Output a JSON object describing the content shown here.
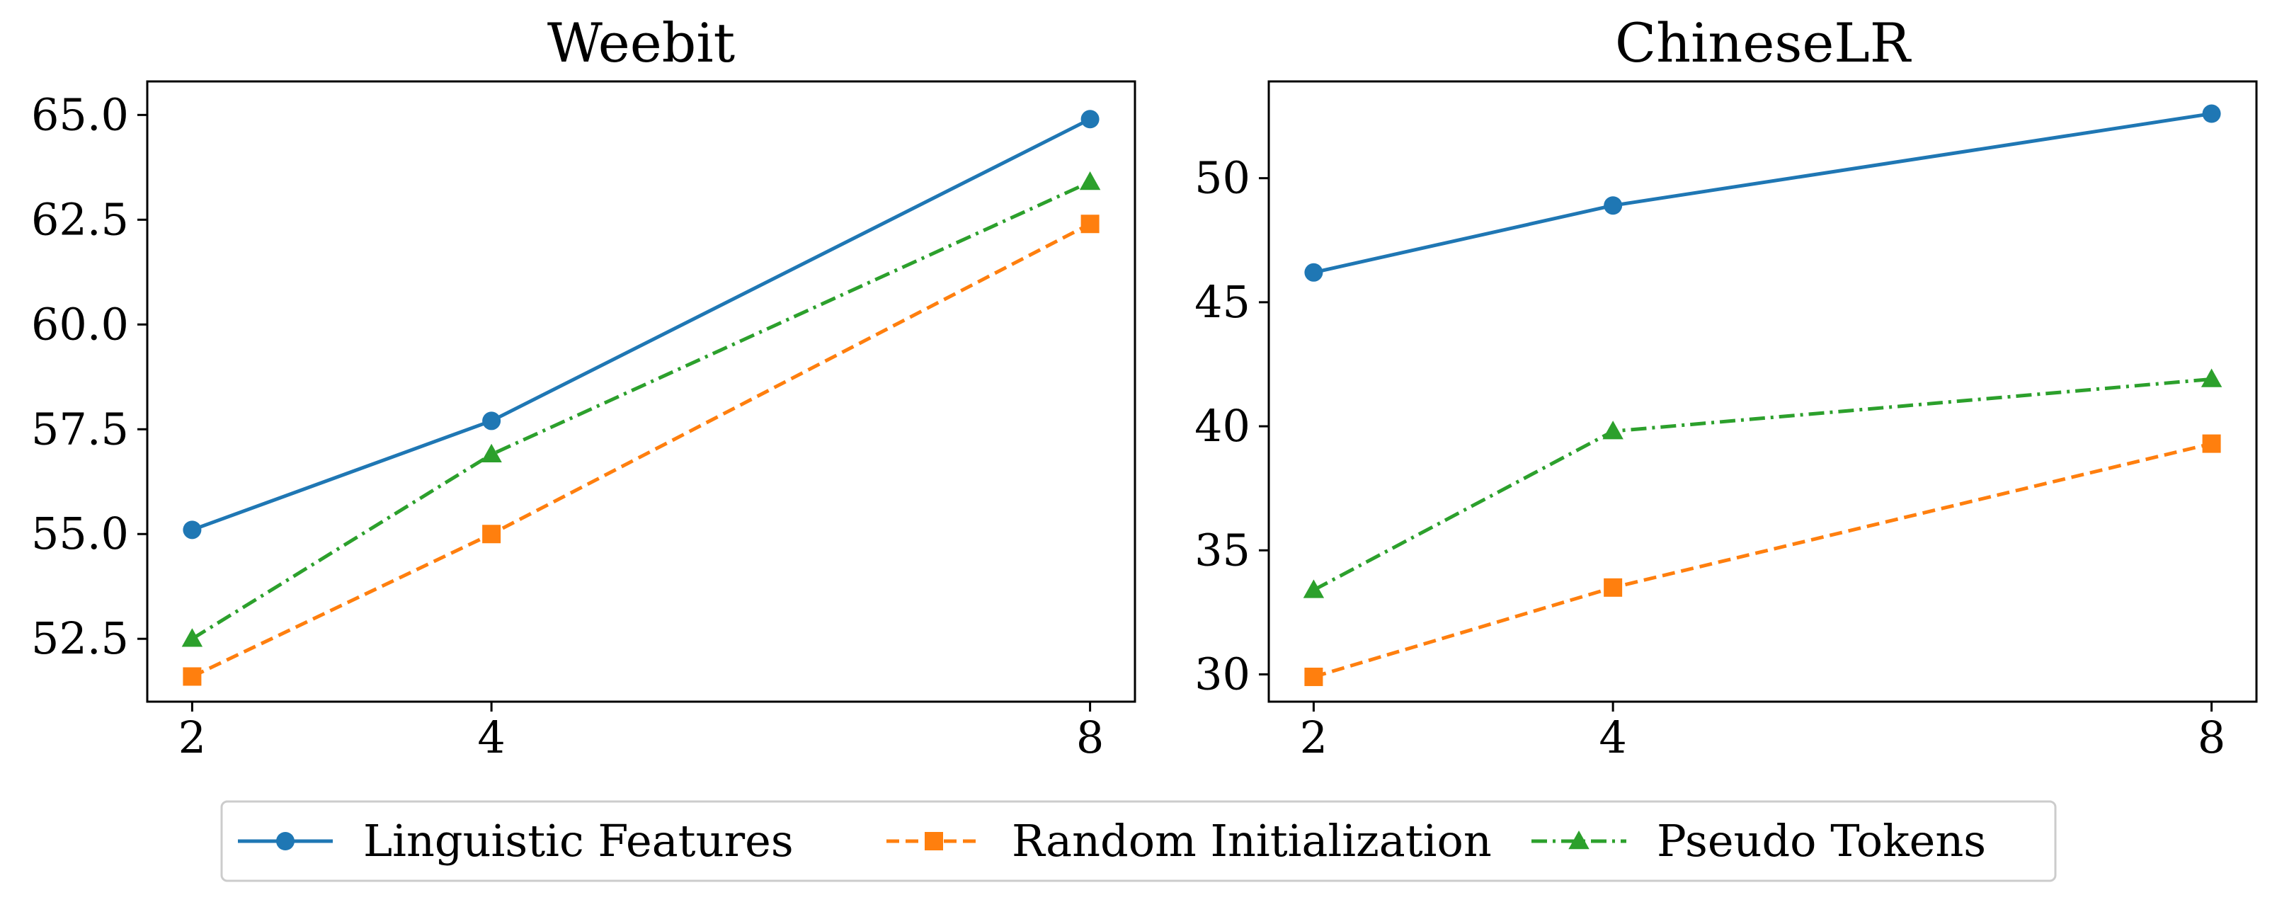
{
  "colors": {
    "linguistic": "#1f77b4",
    "random": "#ff7f0e",
    "pseudo": "#2ca02c",
    "axis": "#000000",
    "legend_border": "#cccccc"
  },
  "legend": {
    "placement": "bottom-center",
    "items": [
      {
        "label": "Linguistic Features",
        "marker": "circle",
        "line_style": "solid",
        "color_key": "linguistic"
      },
      {
        "label": "Random Initialization",
        "marker": "square",
        "line_style": "dashed",
        "color_key": "random"
      },
      {
        "label": "Pseudo Tokens",
        "marker": "triangle",
        "line_style": "dashdot",
        "color_key": "pseudo"
      }
    ]
  },
  "chart_data": [
    {
      "type": "line",
      "title": "Weebit",
      "xlabel": "",
      "ylabel": "",
      "x": [
        2,
        4,
        8
      ],
      "xlim": [
        1.7,
        8.3
      ],
      "ylim": [
        51.0,
        65.8
      ],
      "xticks": [
        2,
        4,
        8
      ],
      "xtick_labels": [
        "2",
        "4",
        "8"
      ],
      "yticks": [
        52.5,
        55.0,
        57.5,
        60.0,
        62.5,
        65.0
      ],
      "ytick_labels": [
        "52.5",
        "55.0",
        "57.5",
        "60.0",
        "62.5",
        "65.0"
      ],
      "grid": false,
      "series": [
        {
          "name": "Linguistic Features",
          "values": [
            55.1,
            57.7,
            64.9
          ]
        },
        {
          "name": "Random Initialization",
          "values": [
            51.6,
            55.0,
            62.4
          ]
        },
        {
          "name": "Pseudo Tokens",
          "values": [
            52.5,
            56.9,
            63.4
          ]
        }
      ]
    },
    {
      "type": "line",
      "title": "ChineseLR",
      "xlabel": "",
      "ylabel": "",
      "x": [
        2,
        4,
        8
      ],
      "xlim": [
        1.7,
        8.3
      ],
      "ylim": [
        28.9,
        53.9
      ],
      "xticks": [
        2,
        4,
        8
      ],
      "xtick_labels": [
        "2",
        "4",
        "8"
      ],
      "yticks": [
        30,
        35,
        40,
        45,
        50
      ],
      "ytick_labels": [
        "30",
        "35",
        "40",
        "45",
        "50"
      ],
      "grid": false,
      "series": [
        {
          "name": "Linguistic Features",
          "values": [
            46.2,
            48.9,
            52.6
          ]
        },
        {
          "name": "Random Initialization",
          "values": [
            29.9,
            33.5,
            39.3
          ]
        },
        {
          "name": "Pseudo Tokens",
          "values": [
            33.4,
            39.8,
            41.9
          ]
        }
      ]
    }
  ]
}
